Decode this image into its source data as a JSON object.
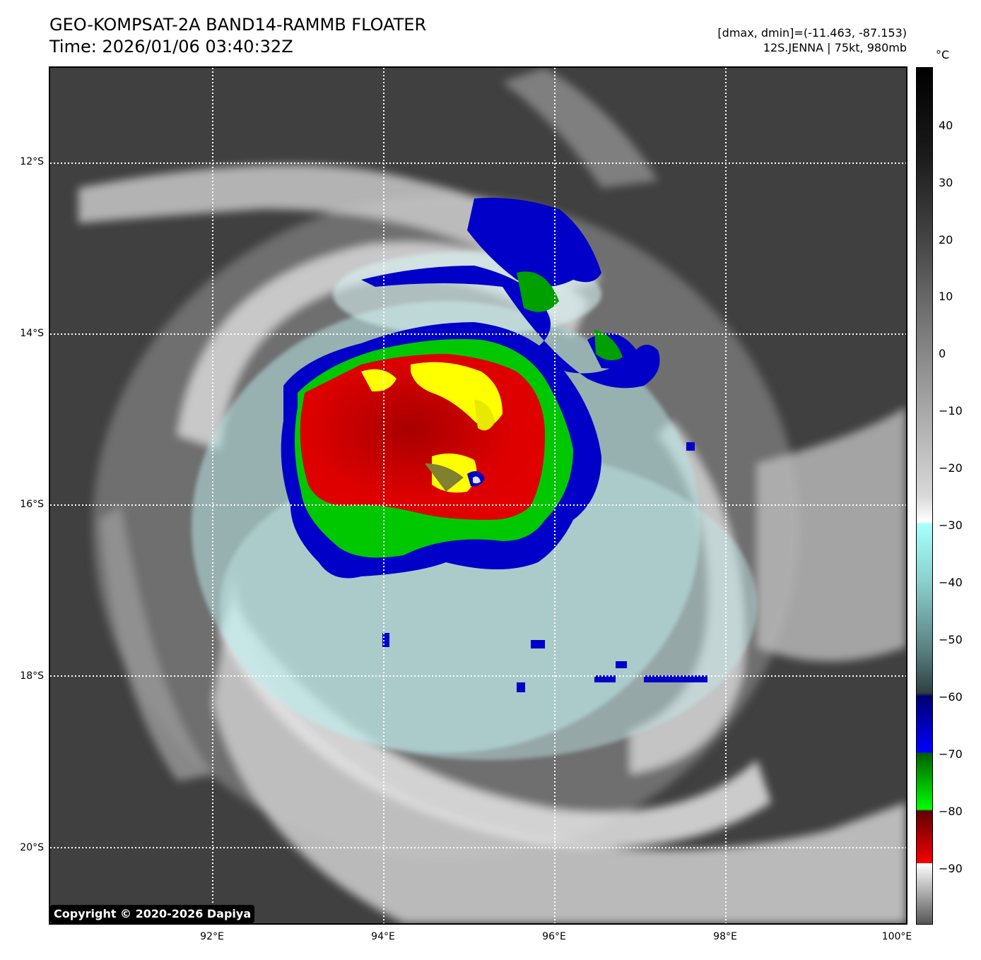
{
  "header": {
    "title": "GEO-KOMPSAT-2A BAND14-RAMMB FLOATER",
    "time": "Time: 2026/01/06 03:40:32Z",
    "dminmax": "[dmax, dmin]=(-11.463, -87.153)",
    "storm": "12S.JENNA | 75kt, 980mb"
  },
  "map": {
    "lat_labels": [
      "12°S",
      "14°S",
      "16°S",
      "18°S",
      "20°S"
    ],
    "lon_labels": [
      "92°E",
      "94°E",
      "96°E",
      "98°E",
      "100°E"
    ],
    "lon_range": [
      90.1,
      100.1
    ],
    "lat_range": [
      -10.9,
      -20.9
    ],
    "gridlines": "dotted",
    "storm_center": {
      "lon": 95.0,
      "lat": -15.6
    },
    "copyright": "Copyright © 2020-2026 Dapiya"
  },
  "colorbar": {
    "unit": "°C",
    "ticks": [
      "40",
      "30",
      "20",
      "10",
      "0",
      "−10",
      "−20",
      "−30",
      "−40",
      "−50",
      "−60",
      "−70",
      "−80",
      "−90"
    ],
    "range": [
      -100,
      50
    ],
    "colors": {
      "warm": "#000000",
      "mid": "#ffffff",
      "cyan": "#a8fffc",
      "blue": "#0000c8",
      "green": "#00c800",
      "red": "#d00000",
      "yellow": "#ffff00",
      "olive": "#505028"
    }
  }
}
